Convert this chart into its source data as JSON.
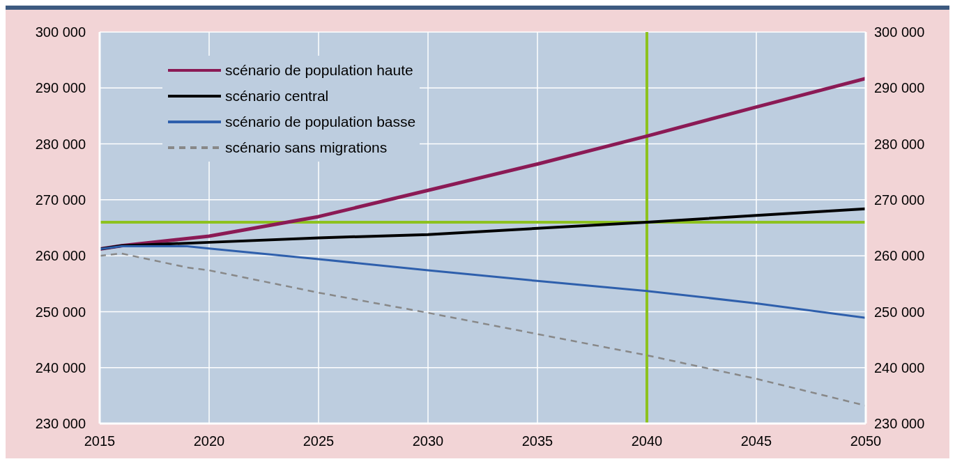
{
  "chart_data": {
    "type": "line",
    "series": [
      {
        "name": "scénario de population haute",
        "color": "#8b1a55",
        "x": [
          2015,
          2016,
          2020,
          2025,
          2030,
          2035,
          2040,
          2045,
          2050
        ],
        "values": [
          261200,
          261800,
          263500,
          267000,
          271700,
          276400,
          281400,
          286600,
          291700
        ]
      },
      {
        "name": "scénario central",
        "color": "#000000",
        "x": [
          2015,
          2016,
          2020,
          2025,
          2030,
          2035,
          2040,
          2045,
          2050
        ],
        "values": [
          261200,
          261800,
          262400,
          263200,
          263800,
          264900,
          266000,
          267200,
          268400
        ]
      },
      {
        "name": "scénario de population basse",
        "color": "#2e5fac",
        "x": [
          2015,
          2016,
          2019,
          2020,
          2025,
          2030,
          2035,
          2040,
          2045,
          2050
        ],
        "values": [
          261200,
          261700,
          261700,
          261300,
          259400,
          257400,
          255500,
          253700,
          251500,
          248900
        ]
      },
      {
        "name": "scénario sans migrations",
        "color": "#888888",
        "line_style": "dashed",
        "x": [
          2015,
          2016,
          2019,
          2020,
          2025,
          2030,
          2035,
          2040,
          2045,
          2050
        ],
        "values": [
          260000,
          260400,
          257900,
          257400,
          253400,
          249800,
          246000,
          242200,
          238000,
          233200
        ]
      }
    ],
    "xlim": [
      2015,
      2050
    ],
    "xticks": [
      2015,
      2020,
      2025,
      2030,
      2035,
      2040,
      2045,
      2050
    ],
    "ylim": [
      230000,
      300000
    ],
    "yticks": [
      {
        "value": 230000,
        "label": "230 000"
      },
      {
        "value": 240000,
        "label": "240 000"
      },
      {
        "value": 250000,
        "label": "250 000"
      },
      {
        "value": 260000,
        "label": "260 000"
      },
      {
        "value": 270000,
        "label": "270 000"
      },
      {
        "value": 280000,
        "label": "280 000"
      },
      {
        "value": 290000,
        "label": "290 000"
      },
      {
        "value": 300000,
        "label": "300 000"
      }
    ],
    "y2lim": [
      230000,
      300000
    ],
    "y2ticks": [
      {
        "value": 230000,
        "label": "230 000"
      },
      {
        "value": 240000,
        "label": "240 000"
      },
      {
        "value": 250000,
        "label": "250 000"
      },
      {
        "value": 260000,
        "label": "260 000"
      },
      {
        "value": 270000,
        "label": "270 000"
      },
      {
        "value": 280000,
        "label": "280 000"
      },
      {
        "value": 290000,
        "label": "290 000"
      },
      {
        "value": 300000,
        "label": "300 000"
      }
    ],
    "ref_lines": [
      {
        "axis": "x",
        "value": 2040,
        "color": "#8dc21f"
      },
      {
        "axis": "y",
        "value": 266000,
        "color": "#8dc21f"
      }
    ],
    "grid": true,
    "legend": "top left",
    "line_style": "solid",
    "marker": "none"
  }
}
